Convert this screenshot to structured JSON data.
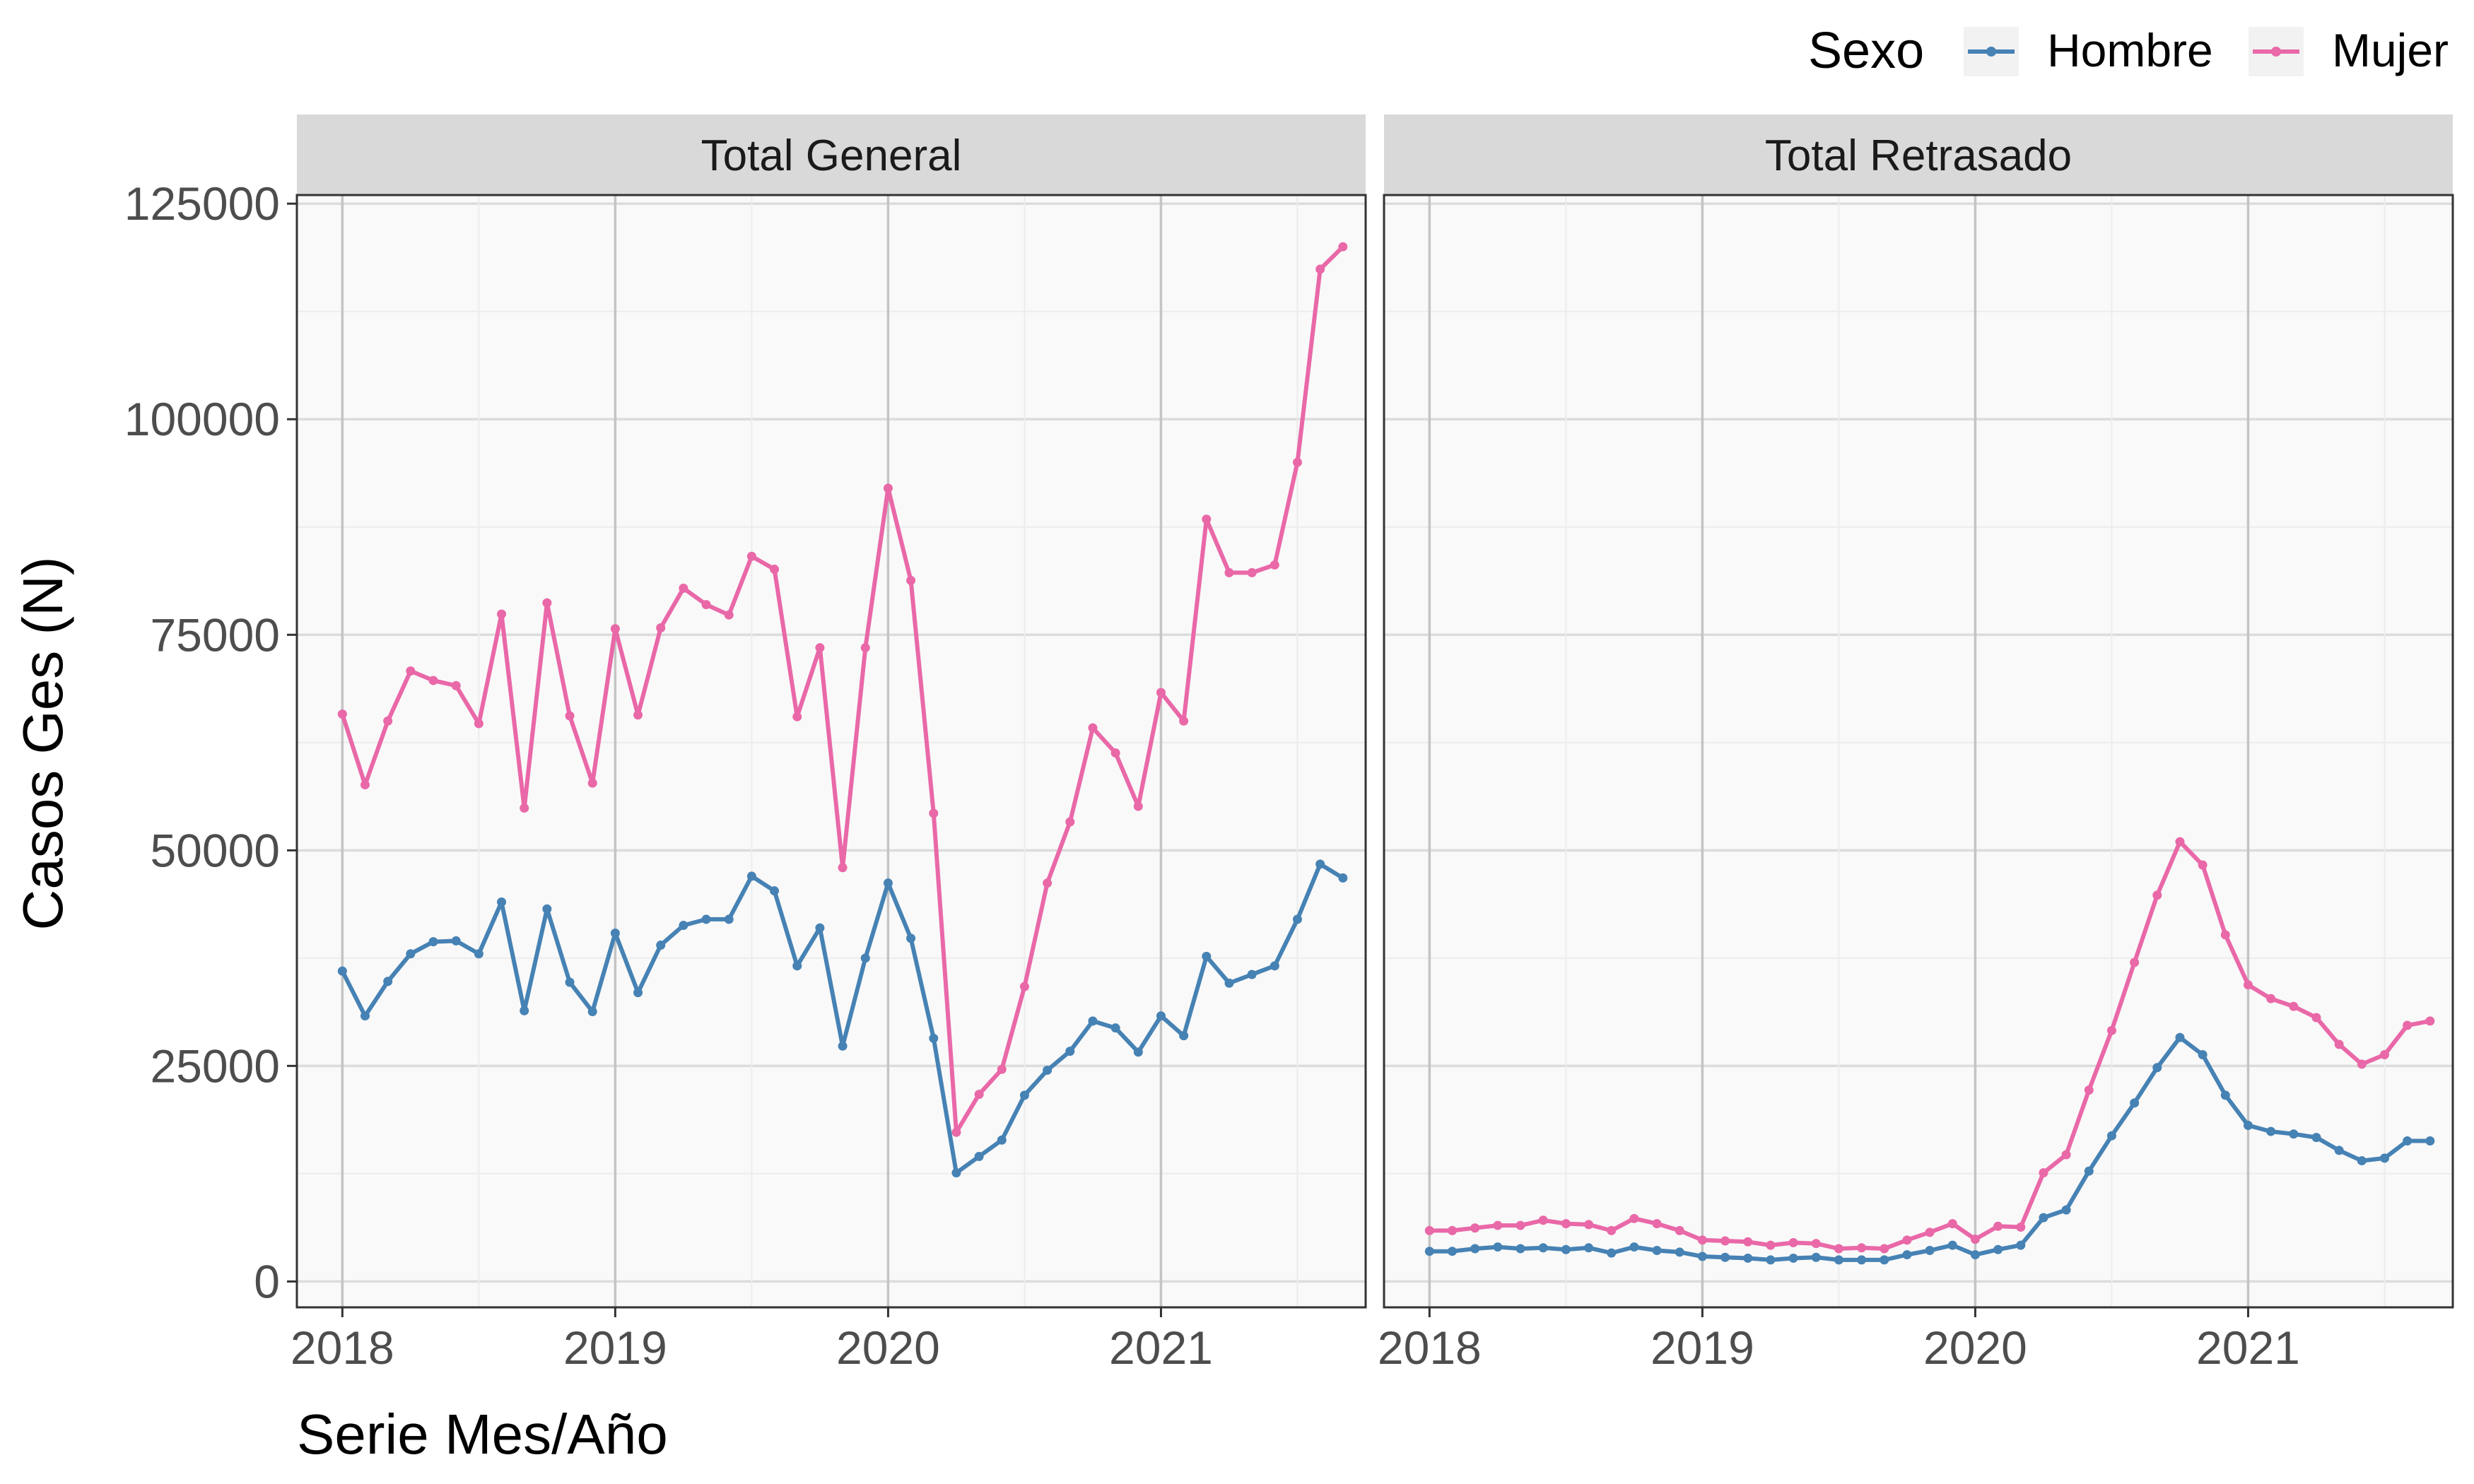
{
  "chart_data": {
    "type": "line",
    "xlabel": "Serie Mes/Año",
    "ylabel": "Casos Ges (N)",
    "x_tick_labels": [
      "2018",
      "2019",
      "2020",
      "2021"
    ],
    "y_tick_labels": [
      "0",
      "25000",
      "50000",
      "75000",
      "100000",
      "125000"
    ],
    "ylim": [
      -3000,
      126000
    ],
    "xlim": [
      "2017-11",
      "2021-10"
    ],
    "grid": true,
    "legend": {
      "title": "Sexo",
      "placement": "top-right",
      "entries": [
        {
          "label": "Hombre",
          "color": "#4682B4"
        },
        {
          "label": "Mujer",
          "color": "#E968A8"
        }
      ]
    },
    "x": [
      "2018-01",
      "2018-02",
      "2018-03",
      "2018-04",
      "2018-05",
      "2018-06",
      "2018-07",
      "2018-08",
      "2018-09",
      "2018-10",
      "2018-11",
      "2018-12",
      "2019-01",
      "2019-02",
      "2019-03",
      "2019-04",
      "2019-05",
      "2019-06",
      "2019-07",
      "2019-08",
      "2019-09",
      "2019-10",
      "2019-11",
      "2019-12",
      "2020-01",
      "2020-02",
      "2020-03",
      "2020-04",
      "2020-05",
      "2020-06",
      "2020-07",
      "2020-08",
      "2020-09",
      "2020-10",
      "2020-11",
      "2020-12",
      "2021-01",
      "2021-02",
      "2021-03",
      "2021-04",
      "2021-05",
      "2021-06",
      "2021-07",
      "2021-08",
      "2021-09"
    ],
    "panels": [
      {
        "title": "Total General",
        "series": [
          {
            "name": "Hombre",
            "color": "#4682B4",
            "values": [
              36000,
              30800,
              34800,
              38000,
              39400,
              39500,
              38000,
              44000,
              31400,
              43200,
              34700,
              31300,
              40400,
              33500,
              39000,
              41300,
              42000,
              42000,
              47000,
              45300,
              36600,
              41000,
              27300,
              37500,
              46200,
              39800,
              28200,
              12600,
              14500,
              16400,
              21600,
              24500,
              26700,
              30200,
              29400,
              26600,
              30800,
              28500,
              37700,
              34600,
              35600,
              36600,
              42000,
              48400,
              46800
            ]
          },
          {
            "name": "Mujer",
            "color": "#E968A8",
            "values": [
              65800,
              57600,
              65000,
              70800,
              69700,
              69100,
              64700,
              77400,
              54900,
              78700,
              65600,
              57800,
              75700,
              65700,
              75800,
              80400,
              78500,
              77300,
              84100,
              82600,
              65500,
              73500,
              48000,
              73500,
              92000,
              81300,
              54300,
              17300,
              21700,
              24600,
              34200,
              46200,
              53300,
              64200,
              61300,
              55100,
              68300,
              65000,
              88400,
              82200,
              82200,
              83100,
              95000,
              117400,
              120000
            ]
          }
        ]
      },
      {
        "title": "Total Retrasado",
        "series": [
          {
            "name": "Hombre",
            "color": "#4682B4",
            "values": [
              3500,
              3500,
              3800,
              4000,
              3800,
              3900,
              3700,
              3900,
              3300,
              4000,
              3600,
              3400,
              2900,
              2800,
              2700,
              2500,
              2700,
              2800,
              2500,
              2500,
              2500,
              3100,
              3600,
              4200,
              3100,
              3700,
              4200,
              7400,
              8300,
              12800,
              16900,
              20700,
              24800,
              28300,
              26300,
              21600,
              18100,
              17400,
              17100,
              16700,
              15200,
              14000,
              14300,
              16300,
              16300
            ]
          },
          {
            "name": "Mujer",
            "color": "#E968A8",
            "values": [
              5900,
              5900,
              6200,
              6500,
              6500,
              7100,
              6700,
              6600,
              5900,
              7300,
              6700,
              5900,
              4800,
              4700,
              4600,
              4200,
              4500,
              4400,
              3800,
              3900,
              3800,
              4800,
              5700,
              6700,
              4900,
              6400,
              6300,
              12600,
              14700,
              22200,
              29100,
              37000,
              44800,
              51000,
              48300,
              40200,
              34400,
              32800,
              31900,
              30600,
              27500,
              25200,
              26300,
              29700,
              30200
            ]
          }
        ]
      }
    ]
  }
}
